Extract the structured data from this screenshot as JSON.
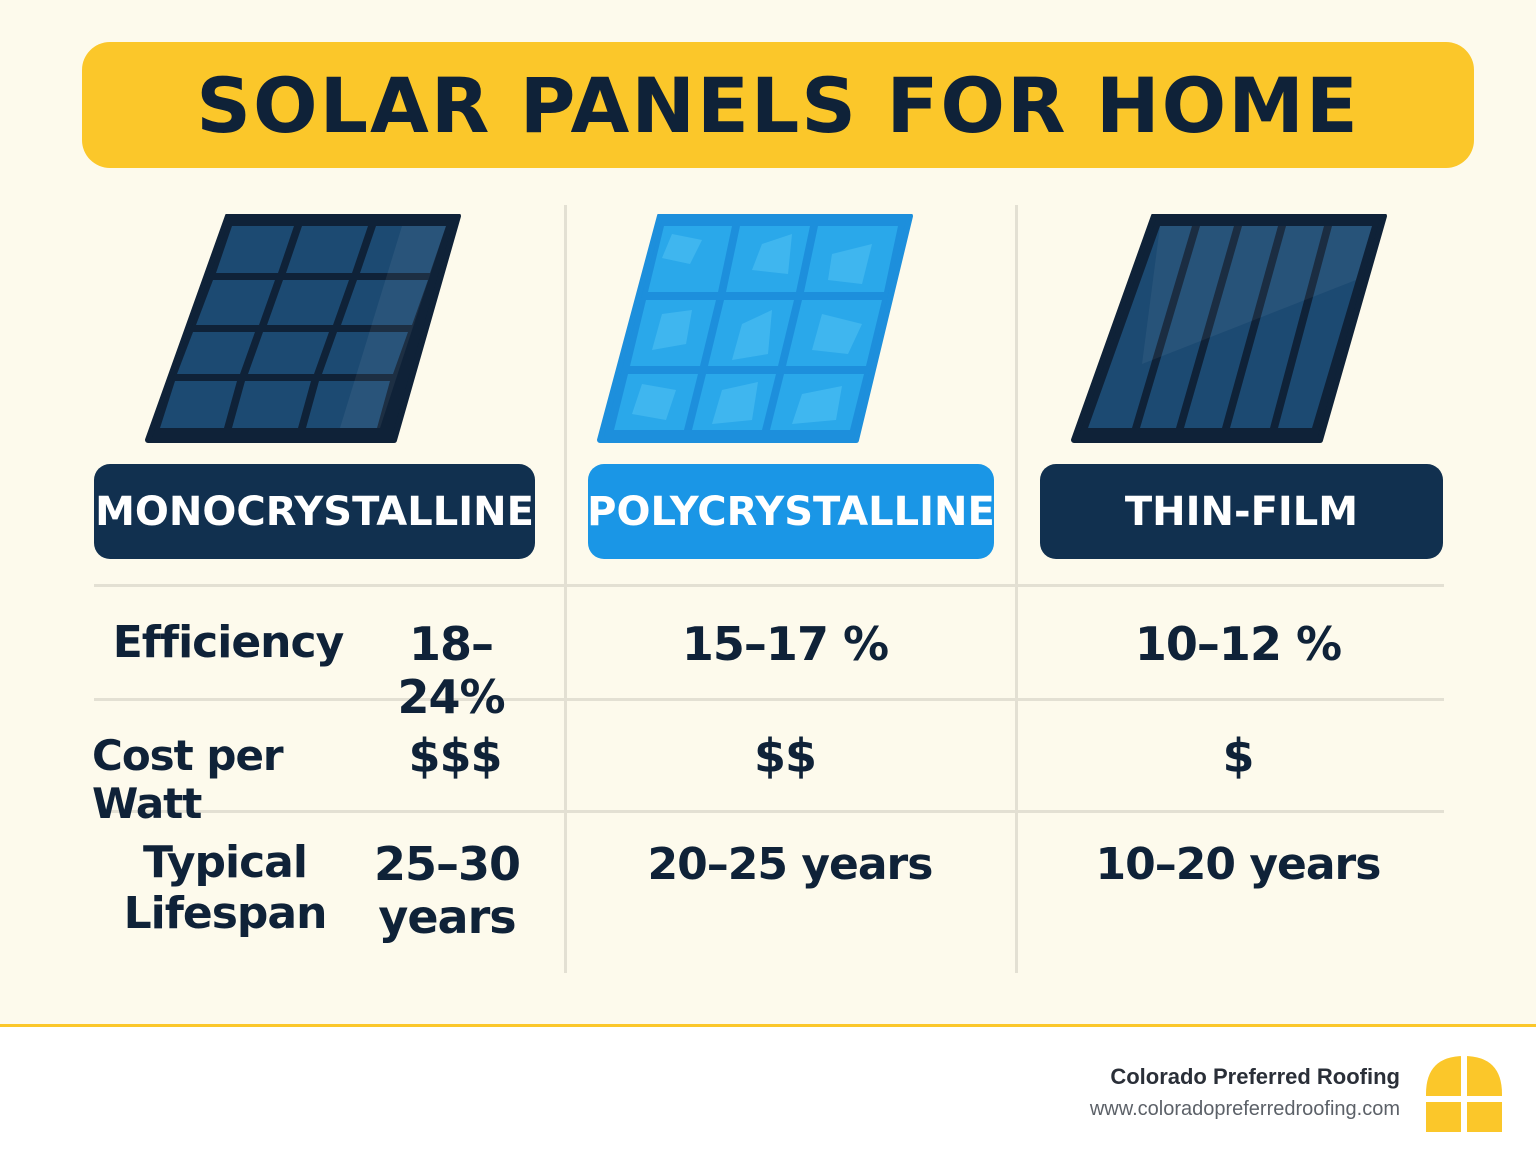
{
  "title": "SOLAR PANELS FOR HOME",
  "columns": [
    {
      "name": "MONOCRYSTALLINE",
      "efficiency": "18–24%",
      "cost": "$$$",
      "lifespan_line1": "25–30",
      "lifespan_line2": "years"
    },
    {
      "name": "POLYCRYSTALLINE",
      "efficiency": "15–17 %",
      "cost": "$$",
      "lifespan": "20–25 years"
    },
    {
      "name": "THIN-FILM",
      "efficiency": "10–12 %",
      "cost": "$",
      "lifespan": "10–20 years"
    }
  ],
  "row_labels": {
    "efficiency": "Efficiency",
    "cost": "Cost per Watt",
    "lifespan_line1": "Typical",
    "lifespan_line2": "Lifespan"
  },
  "footer": {
    "company": "Colorado Preferred Roofing",
    "url": "www.coloradopreferredroofing.com"
  },
  "colors": {
    "accent_yellow": "#fbc72a",
    "navy": "#11304f",
    "blue": "#1a96e6",
    "background": "#fdfaec"
  },
  "icons": [
    "monocrystalline-panel-icon",
    "polycrystalline-panel-icon",
    "thin-film-panel-icon",
    "window-logo-icon"
  ]
}
